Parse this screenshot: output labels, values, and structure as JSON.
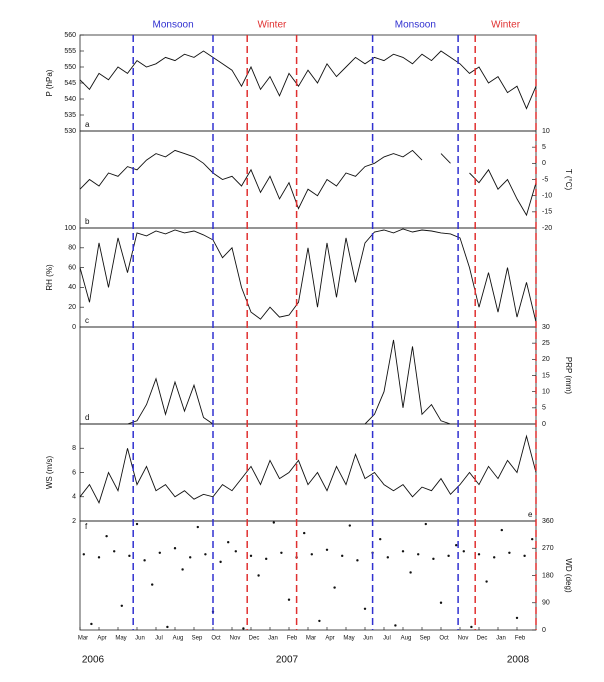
{
  "x_axis": {
    "xlim": [
      0,
      24
    ],
    "xticks": [
      {
        "value": 0,
        "label": "Mar"
      },
      {
        "value": 1,
        "label": "Apr"
      },
      {
        "value": 2,
        "label": "May"
      },
      {
        "value": 3,
        "label": "Jun"
      },
      {
        "value": 4,
        "label": "Jul"
      },
      {
        "value": 5,
        "label": "Aug"
      },
      {
        "value": 6,
        "label": "Sep"
      },
      {
        "value": 7,
        "label": "Oct"
      },
      {
        "value": 8,
        "label": "Nov"
      },
      {
        "value": 9,
        "label": "Dec"
      },
      {
        "value": 10,
        "label": "Jan"
      },
      {
        "value": 11,
        "label": "Feb"
      },
      {
        "value": 12,
        "label": "Mar"
      },
      {
        "value": 13,
        "label": "Apr"
      },
      {
        "value": 14,
        "label": "May"
      },
      {
        "value": 15,
        "label": "Jun"
      },
      {
        "value": 16,
        "label": "Jul"
      },
      {
        "value": 17,
        "label": "Aug"
      },
      {
        "value": 18,
        "label": "Sep"
      },
      {
        "value": 19,
        "label": "Oct"
      },
      {
        "value": 20,
        "label": "Nov"
      },
      {
        "value": 21,
        "label": "Dec"
      },
      {
        "value": 22,
        "label": "Jan"
      },
      {
        "value": 23,
        "label": "Feb"
      }
    ],
    "years": [
      "2006",
      "2007",
      "2008"
    ]
  },
  "periods": [
    {
      "name": "Monsoon",
      "color": "#3030d0",
      "start": 2.8,
      "end": 7
    },
    {
      "name": "Winter",
      "color": "#e03030",
      "start": 8.8,
      "end": 11.4
    },
    {
      "name": "Monsoon",
      "color": "#3030d0",
      "start": 15.4,
      "end": 19.9
    },
    {
      "name": "Winter",
      "color": "#e03030",
      "start": 20.8,
      "end": 24
    }
  ],
  "chart_data": [
    {
      "type": "line",
      "panel_label": "a",
      "y_label": "P (hPa)",
      "axis": "left",
      "color": "#111",
      "ylim": [
        530,
        560
      ],
      "yticks": [
        530,
        535,
        540,
        545,
        550,
        555,
        560
      ],
      "x": [
        0,
        0.5,
        1,
        1.5,
        2,
        2.5,
        3,
        3.5,
        4,
        4.5,
        5,
        5.5,
        6,
        6.5,
        7,
        7.5,
        8,
        8.5,
        9,
        9.5,
        10,
        10.5,
        11,
        11.5,
        12,
        12.5,
        13,
        13.5,
        14,
        14.5,
        15,
        15.5,
        16,
        16.5,
        17,
        17.5,
        18,
        18.5,
        19,
        19.5,
        20,
        20.5,
        21,
        21.5,
        22,
        22.5,
        23,
        23.5,
        24
      ],
      "values": [
        546,
        543,
        548,
        546,
        550,
        548,
        552,
        550,
        551,
        553,
        552,
        554,
        553,
        555,
        553,
        551,
        549,
        544,
        550,
        543,
        547,
        541,
        548,
        544,
        549,
        545,
        551,
        547,
        550,
        553,
        551,
        553,
        552,
        554,
        553,
        551,
        554,
        552,
        555,
        553,
        551,
        548,
        550,
        545,
        547,
        542,
        544,
        537,
        544
      ]
    },
    {
      "type": "line",
      "panel_label": "b",
      "y_label": "T (°C)",
      "axis": "right",
      "color": "#111",
      "ylim": [
        -20,
        10
      ],
      "yticks": [
        -20,
        -15,
        -10,
        -5,
        0,
        5,
        10
      ],
      "x": [
        0,
        0.5,
        1,
        1.5,
        2,
        2.5,
        3,
        3.5,
        4,
        4.5,
        5,
        5.5,
        6,
        6.5,
        7,
        7.5,
        8,
        8.5,
        9,
        9.5,
        10,
        10.5,
        11,
        11.5,
        12,
        12.5,
        13,
        13.5,
        14,
        14.5,
        15,
        15.5,
        16,
        16.5,
        17,
        17.5,
        18,
        18.5,
        19,
        19.5,
        20,
        20.5,
        21,
        21.5,
        22,
        22.5,
        23,
        23.5,
        24
      ],
      "values": [
        -8,
        -5,
        -7,
        -3,
        -4,
        -1,
        -2,
        1,
        3,
        2,
        4,
        3,
        2,
        0,
        -3,
        -5,
        -4,
        -7,
        -2,
        -9,
        -4,
        -11,
        -6,
        -14,
        -8,
        -10,
        -5,
        -7,
        -3,
        -4,
        -1,
        0,
        2,
        3,
        2,
        4,
        1,
        null,
        3,
        0,
        null,
        -3,
        -6,
        -2,
        -8,
        -5,
        -11,
        -16,
        -6
      ]
    },
    {
      "type": "line",
      "panel_label": "c",
      "y_label": "RH (%)",
      "axis": "left",
      "color": "#111",
      "ylim": [
        0,
        100
      ],
      "yticks": [
        0,
        20,
        40,
        60,
        80,
        100
      ],
      "x": [
        0,
        0.5,
        1,
        1.5,
        2,
        2.5,
        3,
        3.5,
        4,
        4.5,
        5,
        5.5,
        6,
        6.5,
        7,
        7.5,
        8,
        8.5,
        9,
        9.5,
        10,
        10.5,
        11,
        11.5,
        12,
        12.5,
        13,
        13.5,
        14,
        14.5,
        15,
        15.5,
        16,
        16.5,
        17,
        17.5,
        18,
        18.5,
        19,
        19.5,
        20,
        20.5,
        21,
        21.5,
        22,
        22.5,
        23,
        23.5,
        24
      ],
      "values": [
        60,
        25,
        85,
        40,
        90,
        55,
        95,
        92,
        97,
        94,
        98,
        95,
        97,
        93,
        88,
        70,
        80,
        40,
        15,
        8,
        20,
        10,
        12,
        25,
        80,
        20,
        85,
        30,
        90,
        45,
        85,
        96,
        98,
        95,
        99,
        96,
        98,
        97,
        95,
        94,
        90,
        60,
        20,
        55,
        15,
        60,
        10,
        45,
        5
      ]
    },
    {
      "type": "line",
      "panel_label": "d",
      "y_label": "PRP (mm)",
      "axis": "right",
      "color": "#111",
      "ylim": [
        0,
        30
      ],
      "yticks": [
        0,
        5,
        10,
        15,
        20,
        25,
        30
      ],
      "x": [
        0,
        0.5,
        1,
        1.5,
        2,
        2.5,
        3,
        3.5,
        4,
        4.5,
        5,
        5.5,
        6,
        6.5,
        7,
        7.5,
        8,
        8.5,
        9,
        9.5,
        10,
        10.5,
        11,
        11.5,
        12,
        12.5,
        13,
        13.5,
        14,
        14.5,
        15,
        15.5,
        16,
        16.5,
        17,
        17.5,
        18,
        18.5,
        19,
        19.5,
        20,
        20.5,
        21,
        21.5,
        22,
        22.5,
        23,
        23.5,
        24
      ],
      "values": [
        0,
        0,
        0,
        0,
        0,
        0,
        1,
        6,
        14,
        3,
        13,
        4,
        12,
        2,
        0,
        0,
        0,
        0,
        0,
        0,
        0,
        0,
        0,
        0,
        0,
        0,
        0,
        0,
        0,
        0,
        0,
        3,
        10,
        26,
        5,
        24,
        3,
        6,
        1,
        0,
        0,
        0,
        0,
        0,
        0,
        0,
        0,
        0,
        0
      ]
    },
    {
      "type": "line",
      "panel_label": "e",
      "y_label": "WS (m/s)",
      "axis": "left",
      "color": "#111",
      "ylim": [
        2,
        10
      ],
      "yticks": [
        2,
        4,
        6,
        8
      ],
      "x": [
        0,
        0.5,
        1,
        1.5,
        2,
        2.5,
        3,
        3.5,
        4,
        4.5,
        5,
        5.5,
        6,
        6.5,
        7,
        7.5,
        8,
        8.5,
        9,
        9.5,
        10,
        10.5,
        11,
        11.5,
        12,
        12.5,
        13,
        13.5,
        14,
        14.5,
        15,
        15.5,
        16,
        16.5,
        17,
        17.5,
        18,
        18.5,
        19,
        19.5,
        20,
        20.5,
        21,
        21.5,
        22,
        22.5,
        23,
        23.5,
        24
      ],
      "values": [
        4,
        5,
        3.5,
        6,
        4.5,
        8,
        5,
        6.5,
        4.5,
        5,
        4,
        4.5,
        3.8,
        4.2,
        4,
        5,
        4.5,
        5.5,
        6.5,
        5,
        7,
        5.5,
        6,
        7,
        5,
        6,
        4.5,
        6.5,
        5,
        7.5,
        5.5,
        6,
        5,
        4.5,
        5,
        4,
        4.8,
        4.5,
        5.5,
        4.2,
        5,
        6,
        5,
        6.5,
        5.5,
        7,
        6,
        9,
        6
      ]
    },
    {
      "type": "scatter",
      "panel_label": "f",
      "y_label": "WD (deg)",
      "axis": "right",
      "color": "#111",
      "ylim": [
        0,
        360
      ],
      "yticks": [
        0,
        90,
        180,
        270,
        360
      ],
      "x": [
        0.2,
        0.6,
        1,
        1.4,
        1.8,
        2.2,
        2.6,
        3,
        3.4,
        3.8,
        4.2,
        4.6,
        5,
        5.4,
        5.8,
        6.2,
        6.6,
        7,
        7.4,
        7.8,
        8.2,
        8.6,
        9,
        9.4,
        9.8,
        10.2,
        10.6,
        11,
        11.4,
        11.8,
        12.2,
        12.6,
        13,
        13.4,
        13.8,
        14.2,
        14.6,
        15,
        15.4,
        15.8,
        16.2,
        16.6,
        17,
        17.4,
        17.8,
        18.2,
        18.6,
        19,
        19.4,
        19.8,
        20.2,
        20.6,
        21,
        21.4,
        21.8,
        22.2,
        22.6,
        23,
        23.4,
        23.8
      ],
      "values": [
        250,
        20,
        240,
        310,
        260,
        80,
        245,
        350,
        230,
        150,
        255,
        10,
        270,
        200,
        240,
        340,
        250,
        60,
        225,
        290,
        260,
        5,
        245,
        180,
        235,
        355,
        255,
        100,
        240,
        320,
        250,
        30,
        265,
        140,
        245,
        345,
        230,
        70,
        255,
        300,
        240,
        15,
        260,
        190,
        250,
        350,
        235,
        90,
        245,
        280,
        260,
        10,
        250,
        160,
        240,
        330,
        255,
        40,
        245,
        300
      ]
    }
  ]
}
